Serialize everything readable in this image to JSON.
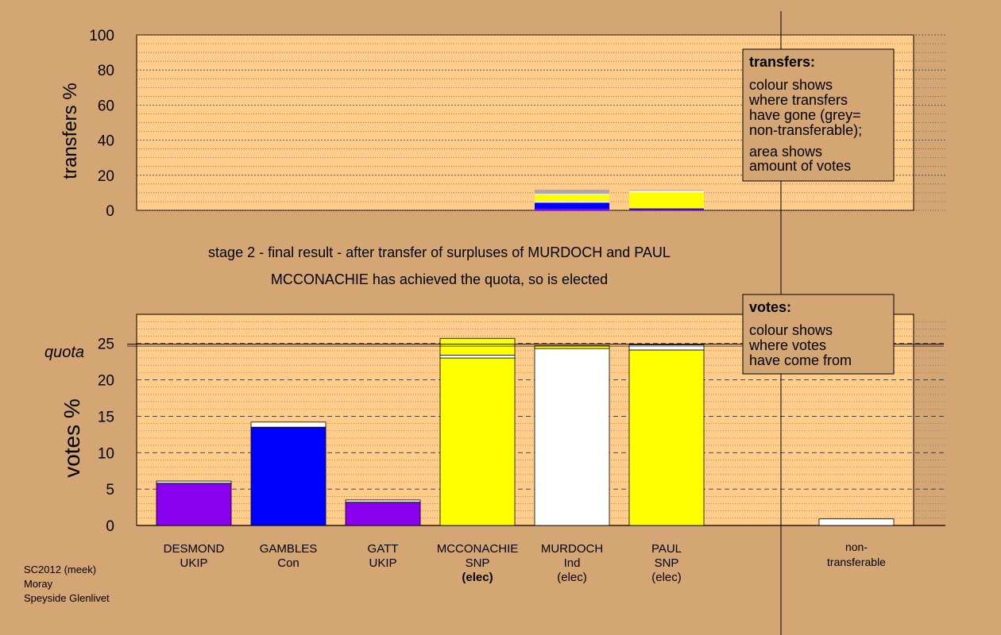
{
  "chart_data": [
    {
      "type": "bar",
      "stacked": true,
      "ylabel": "transfers %",
      "ylim": [
        0,
        100
      ],
      "yticks": [
        "0",
        "20",
        "40",
        "60",
        "80",
        "100"
      ],
      "categories": [
        "DESMOND",
        "GAMBLES",
        "GATT",
        "MCCONACHIE",
        "MURDOCH",
        "PAUL"
      ],
      "bars": [
        {
          "category": "MURDOCH",
          "segments": [
            {
              "color": "#8800ee",
              "value": 0.8
            },
            {
              "color": "#0000ff",
              "value": 3.6
            },
            {
              "color": "#ffffff",
              "value": 0.6
            },
            {
              "color": "#ffff00",
              "value": 4.0
            },
            {
              "color": "#ffffff",
              "value": 0.4
            },
            {
              "color": "#aaaaaa",
              "value": 2.4
            }
          ]
        },
        {
          "category": "PAUL",
          "segments": [
            {
              "color": "#8800ee",
              "value": 0.3
            },
            {
              "color": "#0000ff",
              "value": 0.8
            },
            {
              "color": "#ffff00",
              "value": 9.2
            },
            {
              "color": "#ffffff",
              "value": 0.8
            },
            {
              "color": "#aaaaaa",
              "value": 0.5
            }
          ]
        }
      ],
      "legend": {
        "title": "transfers:",
        "lines1": [
          "colour shows",
          "where transfers",
          "have gone (grey=",
          "non-transferable);"
        ],
        "lines2": [
          "area shows",
          "amount of votes"
        ]
      },
      "grid": true
    },
    {
      "type": "bar",
      "stacked": true,
      "ylabel": "votes %",
      "ylim": [
        0,
        29
      ],
      "yticks": [
        "0",
        "5",
        "10",
        "15",
        "20",
        "25"
      ],
      "quota": {
        "label": "quota",
        "value": 24.9
      },
      "categories": [
        {
          "name": "DESMOND",
          "party": "UKIP",
          "status": ""
        },
        {
          "name": "GAMBLES",
          "party": "Con",
          "status": ""
        },
        {
          "name": "GATT",
          "party": "UKIP",
          "status": ""
        },
        {
          "name": "MCCONACHIE",
          "party": "SNP",
          "status": "(elec)",
          "bold_status": true
        },
        {
          "name": "MURDOCH",
          "party": "Ind",
          "status": "(elec)"
        },
        {
          "name": "PAUL",
          "party": "SNP",
          "status": "(elec)"
        }
      ],
      "bars": [
        {
          "category": "DESMOND",
          "segments": [
            {
              "color": "#8800ee",
              "value": 5.8
            },
            {
              "color": "#ffffff",
              "value": 0.3
            }
          ]
        },
        {
          "category": "GAMBLES",
          "segments": [
            {
              "color": "#0000ff",
              "value": 13.5
            },
            {
              "color": "#ffffff",
              "value": 0.7
            }
          ]
        },
        {
          "category": "GATT",
          "segments": [
            {
              "color": "#8800ee",
              "value": 3.2
            },
            {
              "color": "#ffffff",
              "value": 0.3
            }
          ]
        },
        {
          "category": "MCCONACHIE",
          "segments": [
            {
              "color": "#ffff00",
              "value": 23.0
            },
            {
              "color": "#ffffff",
              "value": 0.4
            },
            {
              "color": "#ffff00",
              "value": 2.3
            }
          ]
        },
        {
          "category": "MURDOCH",
          "segments": [
            {
              "color": "#ffffff",
              "value": 24.3
            },
            {
              "color": "#ffff00",
              "value": 0.4
            }
          ]
        },
        {
          "category": "PAUL",
          "segments": [
            {
              "color": "#ffff00",
              "value": 24.1
            },
            {
              "color": "#ffffff",
              "value": 0.7
            }
          ]
        },
        {
          "category": "non-transferable",
          "segments": [
            {
              "color": "#ffffff",
              "value": 0.9
            }
          ]
        }
      ],
      "nontransferable_label": [
        "non-",
        "transferable"
      ],
      "legend": {
        "title": "votes:",
        "lines": [
          "colour shows",
          "where votes",
          "have come from"
        ]
      },
      "grid": true
    }
  ],
  "captions": {
    "stage": "stage 2 - final result - after transfer of surpluses of MURDOCH and PAUL",
    "elected": "MCCONACHIE has achieved the quota, so is elected"
  },
  "footer": [
    "SC2012 (meek)",
    "Moray",
    "Speyside Glenlivet"
  ],
  "colors": {
    "background": "#d4a673",
    "plot_background": "#ffcc8a",
    "legend_background": "#d4a673"
  }
}
